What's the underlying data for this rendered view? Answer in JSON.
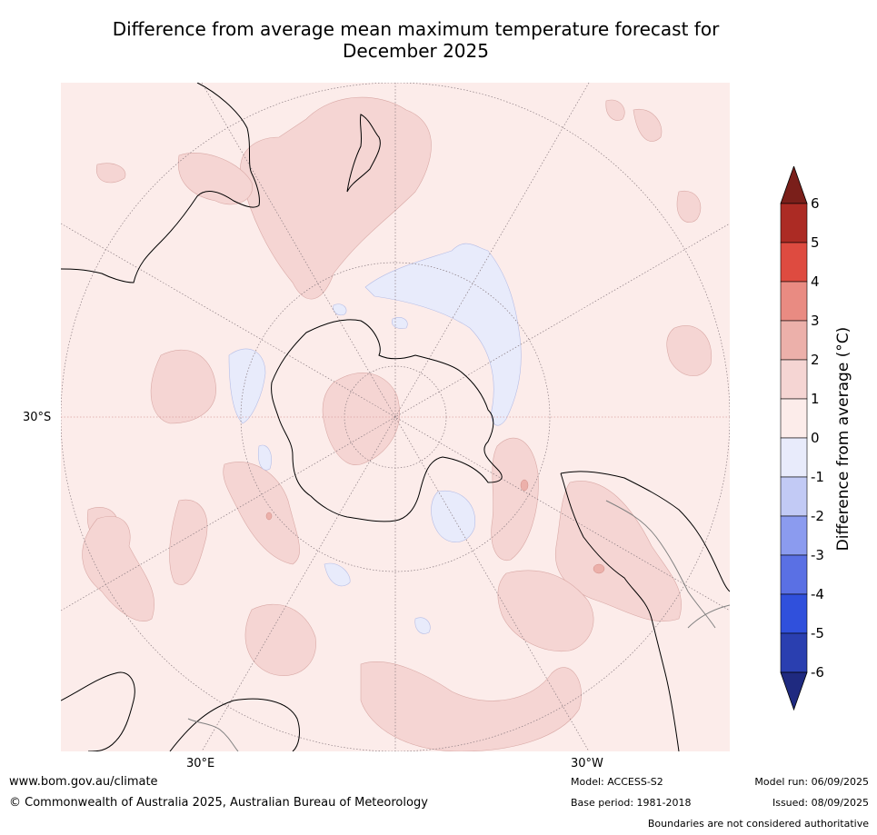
{
  "title_line1": "Difference from average mean maximum temperature forecast for",
  "title_line2": "December 2025",
  "map": {
    "projection": "south-polar-stereographic",
    "lat_label": "30°S",
    "lon_labels": {
      "east": "30°E",
      "west": "30°W"
    },
    "graticule_style": "dotted grey",
    "colors": {
      "cat_0_to_1": "#fcecea",
      "cat_1_to_2": "#f5d5d3",
      "cat_2_to_3": "#ecb0aa",
      "cat_neg1_to_0": "#e8ebfb",
      "coastline": "#000000",
      "borders": "#808080"
    }
  },
  "colorbar": {
    "title": "Difference from average (°C)",
    "ticks": [
      "6",
      "5",
      "4",
      "3",
      "2",
      "1",
      "0",
      "-1",
      "-2",
      "-3",
      "-4",
      "-5",
      "-6"
    ],
    "bands": [
      {
        "range": "5 to 6",
        "color": "#ac2b24"
      },
      {
        "range": "4 to 5",
        "color": "#de4b40"
      },
      {
        "range": "3 to 4",
        "color": "#e98b82"
      },
      {
        "range": "2 to 3",
        "color": "#ecb0aa"
      },
      {
        "range": "1 to 2",
        "color": "#f5d5d3"
      },
      {
        "range": "0 to 1",
        "color": "#fcecea"
      },
      {
        "range": "-1 to 0",
        "color": "#e8ebfb"
      },
      {
        "range": "-2 to -1",
        "color": "#c2caf5"
      },
      {
        "range": "-3 to -2",
        "color": "#8b9bef"
      },
      {
        "range": "-4 to -3",
        "color": "#5a70e4"
      },
      {
        "range": "-5 to -4",
        "color": "#3050dc"
      },
      {
        "range": "-6 to -5",
        "color": "#2a3fb0"
      }
    ],
    "over_color": "#7a1f1a",
    "under_color": "#1f2a80"
  },
  "footer": {
    "website": "www.bom.gov.au/climate",
    "copyright": "© Commonwealth of Australia 2025, Australian Bureau of Meteorology",
    "model": "Model: ACCESS-S2",
    "base_period": "Base period: 1981-2018",
    "model_run": "Model run: 06/09/2025",
    "issued": "Issued: 08/09/2025",
    "disclaimer": "Boundaries are not considered authoritative"
  }
}
